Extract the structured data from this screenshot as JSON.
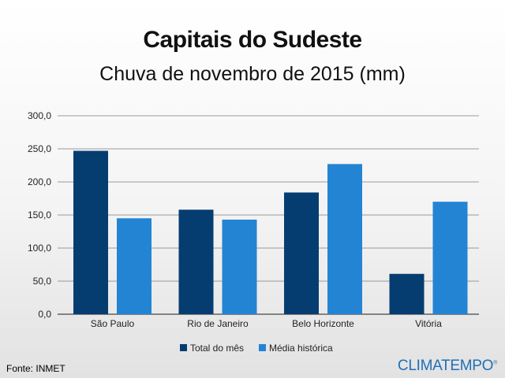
{
  "chart_data": {
    "type": "bar",
    "title": "Capitais do Sudeste",
    "subtitle": "Chuva de novembro de 2015 (mm)",
    "categories": [
      "São Paulo",
      "Rio de Janeiro",
      "Belo Horizonte",
      "Vitória"
    ],
    "series": [
      {
        "name": "Total do mês",
        "color": "#063d71",
        "values": [
          247,
          158,
          184,
          61
        ]
      },
      {
        "name": "Média histórica",
        "color": "#2384d4",
        "values": [
          145,
          143,
          227,
          170
        ]
      }
    ],
    "ylim": [
      0,
      300
    ],
    "yticks": [
      "0,0",
      "50,0",
      "100,0",
      "150,0",
      "200,0",
      "250,0",
      "300,0"
    ],
    "grid": true,
    "legend_position": "bottom"
  },
  "source": "Fonte: INMET",
  "brand": "CLIMATEMPO",
  "brand_mark": "®"
}
